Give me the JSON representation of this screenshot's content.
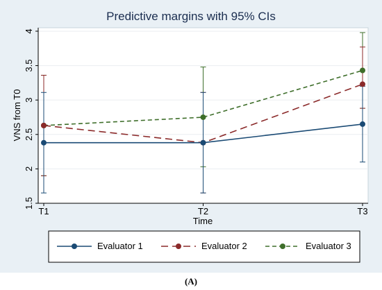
{
  "chart_data": {
    "type": "line",
    "title": "Predictive margins with 95% CIs",
    "xlabel": "Time",
    "ylabel": "VNS from T0",
    "categories": [
      "T1",
      "T2",
      "T3"
    ],
    "yticks": [
      "1.5",
      "2",
      "2.5",
      "3",
      "3.5",
      "4"
    ],
    "ylim": [
      1.5,
      4.05
    ],
    "grid": true,
    "legend_position": "bottom",
    "series": [
      {
        "name": "Evaluator 1",
        "values": [
          2.38,
          2.38,
          2.65
        ],
        "ci_low": [
          1.65,
          1.65,
          2.1
        ],
        "ci_high": [
          3.11,
          3.11,
          3.2
        ],
        "color": "#1a4a74",
        "dash": "solid"
      },
      {
        "name": "Evaluator  2",
        "values": [
          2.63,
          2.38,
          3.23
        ],
        "ci_low": [
          1.9,
          1.65,
          2.88
        ],
        "ci_high": [
          3.36,
          3.11,
          3.77
        ],
        "color": "#8b2a2a",
        "dash": "long-dash"
      },
      {
        "name": "Evaluator 3",
        "values": [
          2.63,
          2.75,
          3.43
        ],
        "ci_low": [
          1.9,
          2.03,
          2.88
        ],
        "ci_high": [
          3.36,
          3.48,
          3.98
        ],
        "color": "#3e6e2a",
        "dash": "short-dash"
      }
    ]
  },
  "caption": "(A)"
}
